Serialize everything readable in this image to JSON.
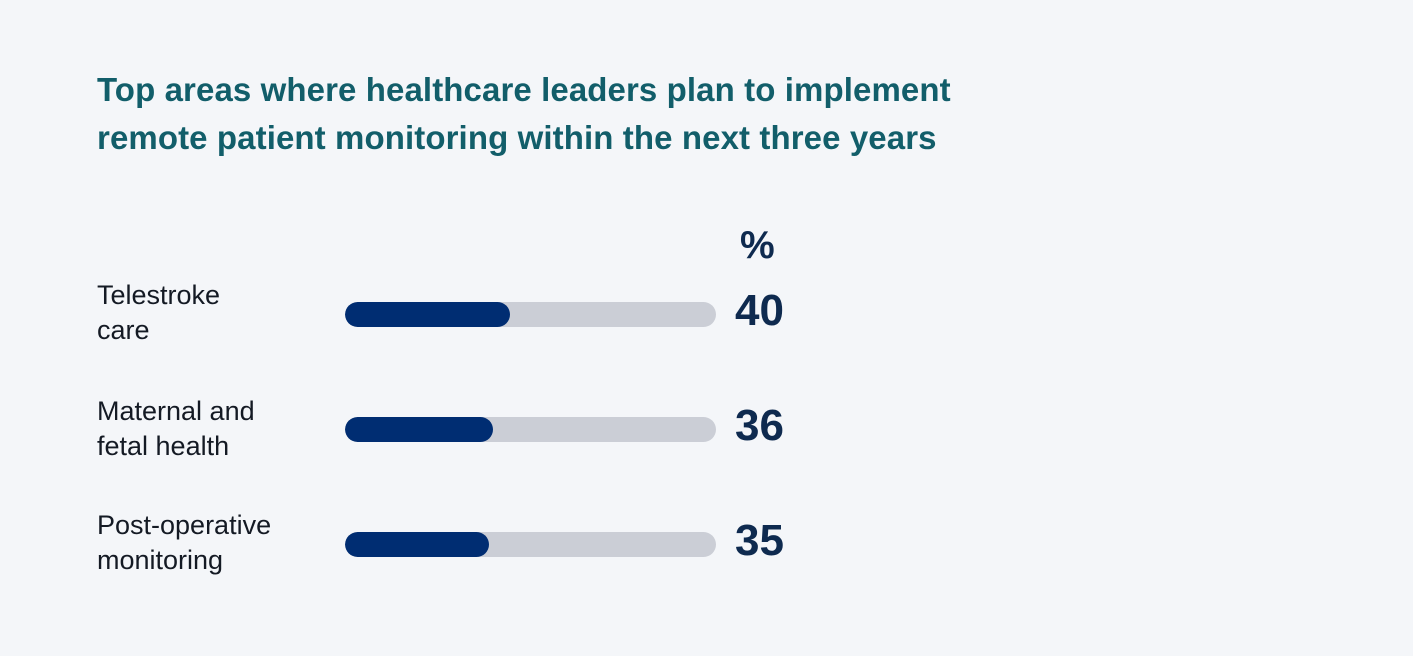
{
  "header": {
    "title_line1": "Top areas where healthcare leaders plan to implement",
    "title_line2": "remote patient monitoring within the next three years"
  },
  "unit": "%",
  "chart_data": {
    "type": "bar",
    "orientation": "horizontal",
    "title": "Top areas where healthcare leaders plan to implement remote patient monitoring within the next three years",
    "categories": [
      "Telestroke care",
      "Maternal and fetal health",
      "Post-operative monitoring"
    ],
    "values": [
      40,
      36,
      35
    ],
    "unit": "%",
    "xlim": [
      0,
      90
    ],
    "grid": false,
    "legend": "none",
    "colors": {
      "fill": "#002d72",
      "track": "#cbced6"
    },
    "rows": [
      {
        "label_lines": [
          "Telestroke",
          "care"
        ],
        "value": 40
      },
      {
        "label_lines": [
          "Maternal and",
          "fetal health"
        ],
        "value": 36
      },
      {
        "label_lines": [
          "Post-operative",
          "monitoring"
        ],
        "value": 35
      }
    ]
  }
}
